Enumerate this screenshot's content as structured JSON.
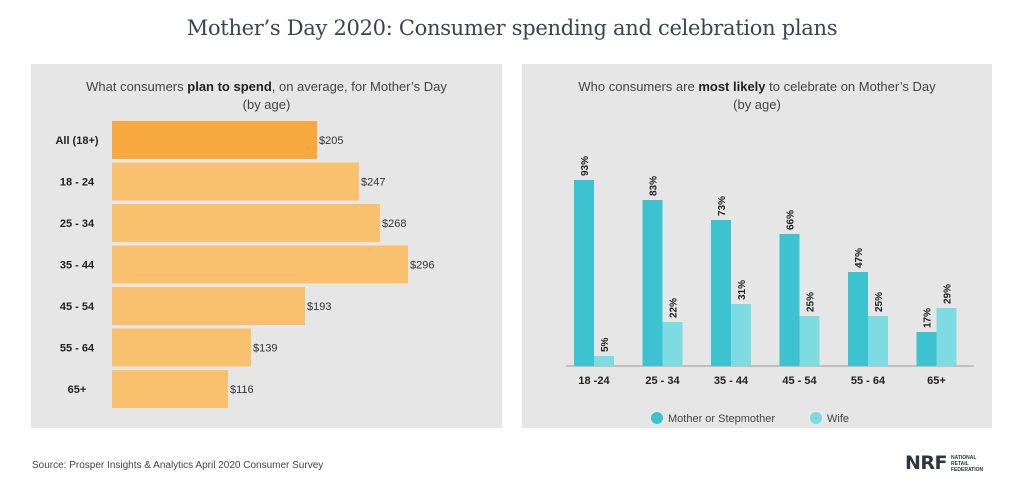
{
  "title": "Mother’s Day 2020: Consumer spending and celebration plans",
  "source": "Source: Prosper Insights & Analytics April 2020 Consumer Survey",
  "logo": {
    "big": "NRF",
    "small_line1": "NATIONAL",
    "small_line2": "RETAIL",
    "small_line3": "FEDERATION"
  },
  "colors": {
    "panel_bg": "#e6e6e6",
    "bar_highlight": "#f7a940",
    "bar_normal": "#f9c06d",
    "mother": "#3cc3cf",
    "wife": "#7fdbe2"
  },
  "chart_data": [
    {
      "type": "bar",
      "orientation": "horizontal",
      "title_parts": [
        "What consumers ",
        "plan to spend",
        ", on average, for Mother’s Day"
      ],
      "subtitle": "(by age)",
      "categories": [
        "All (18+)",
        "18 - 24",
        "25 - 34",
        "35 - 44",
        "45 - 54",
        "55 - 64",
        "65+"
      ],
      "values": [
        205,
        247,
        268,
        296,
        193,
        139,
        116
      ],
      "value_labels": [
        "$205",
        "$247",
        "$268",
        "$296",
        "$193",
        "$139",
        "$116"
      ],
      "highlight_index": 0
    },
    {
      "type": "bar",
      "orientation": "vertical",
      "title_parts": [
        "Who consumers are ",
        "most likely",
        " to celebrate on Mother’s Day"
      ],
      "subtitle": "(by age)",
      "categories": [
        "18 -24",
        "25 - 34",
        "35 - 44",
        "45 - 54",
        "55 - 64",
        "65+"
      ],
      "series": [
        {
          "name": "Mother or Stepmother",
          "values": [
            93,
            83,
            73,
            66,
            47,
            17
          ],
          "labels": [
            "93%",
            "83%",
            "73%",
            "66%",
            "47%",
            "17%"
          ]
        },
        {
          "name": "Wife",
          "values": [
            5,
            22,
            31,
            25,
            25,
            29
          ],
          "labels": [
            "5%",
            "22%",
            "31%",
            "25%",
            "25%",
            "29%"
          ]
        }
      ],
      "ylim": [
        0,
        100
      ],
      "legend_position": "bottom"
    }
  ]
}
